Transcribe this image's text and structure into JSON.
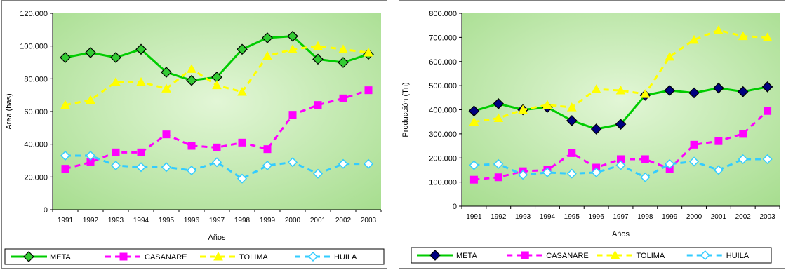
{
  "chart_data": [
    {
      "type": "line",
      "title": "",
      "xlabel": "Años",
      "ylabel": "Area (has)",
      "ylim": [
        0,
        120000
      ],
      "y_tick_labels": [
        "0",
        "20.000",
        "40.000",
        "60.000",
        "80.000",
        "100.000",
        "120.000"
      ],
      "categories": [
        "1991",
        "1992",
        "1993",
        "1994",
        "1995",
        "1996",
        "1997",
        "1998",
        "1999",
        "2000",
        "2001",
        "2002",
        "2003"
      ],
      "grid": false,
      "legend": "bottom",
      "plot_background": "green-gradient",
      "series": [
        {
          "name": "META",
          "color": "#00cc00",
          "marker": "diamond",
          "marker_fill": "#33cc33",
          "line_style": "solid",
          "values": [
            93000,
            96000,
            93000,
            98000,
            84000,
            79000,
            81000,
            98000,
            105000,
            106000,
            92000,
            90000,
            95000
          ]
        },
        {
          "name": "CASANARE",
          "color": "#ff00ff",
          "marker": "square",
          "marker_fill": "#ff00ff",
          "line_style": "dashed",
          "values": [
            25000,
            29000,
            35000,
            35000,
            46000,
            39000,
            38000,
            41000,
            37000,
            58000,
            64000,
            68000,
            73000
          ]
        },
        {
          "name": "TOLIMA",
          "color": "#ffff00",
          "marker": "triangle",
          "marker_fill": "#ffff00",
          "line_style": "dashed",
          "values": [
            64000,
            67000,
            78000,
            78000,
            74000,
            86000,
            76000,
            72000,
            94000,
            98000,
            100000,
            98000,
            96000
          ]
        },
        {
          "name": "HUILA",
          "color": "#33ccff",
          "marker": "diamond-open",
          "marker_fill": "#ffffff",
          "line_style": "dashed",
          "values": [
            33000,
            33000,
            27000,
            26000,
            26000,
            24000,
            29000,
            19000,
            27000,
            29000,
            22000,
            28000,
            28000
          ]
        }
      ]
    },
    {
      "type": "line",
      "title": "",
      "xlabel": "Años",
      "ylabel": "Producción (Tn)",
      "ylim": [
        0,
        800000
      ],
      "y_tick_labels": [
        "0",
        "100.000",
        "200.000",
        "300.000",
        "400.000",
        "500.000",
        "600.000",
        "700.000",
        "800.000"
      ],
      "categories": [
        "1991",
        "1992",
        "1993",
        "1994",
        "1995",
        "1996",
        "1997",
        "1998",
        "1999",
        "2000",
        "2001",
        "2002",
        "2003"
      ],
      "grid": false,
      "legend": "bottom",
      "plot_background": "green-gradient",
      "series": [
        {
          "name": "META",
          "color": "#00cc00",
          "marker": "diamond",
          "marker_fill": "#000080",
          "line_style": "solid",
          "values": [
            395000,
            425000,
            400000,
            410000,
            355000,
            320000,
            340000,
            460000,
            480000,
            470000,
            490000,
            475000,
            495000
          ]
        },
        {
          "name": "CASANARE",
          "color": "#ff00ff",
          "marker": "square",
          "marker_fill": "#ff00ff",
          "line_style": "dashed",
          "values": [
            110000,
            120000,
            145000,
            150000,
            220000,
            160000,
            195000,
            195000,
            155000,
            255000,
            270000,
            300000,
            395000
          ]
        },
        {
          "name": "TOLIMA",
          "color": "#ffff00",
          "marker": "triangle",
          "marker_fill": "#ffff00",
          "line_style": "dashed",
          "values": [
            350000,
            365000,
            400000,
            420000,
            410000,
            485000,
            480000,
            465000,
            620000,
            690000,
            730000,
            705000,
            700000
          ]
        },
        {
          "name": "HUILA",
          "color": "#33ccff",
          "marker": "diamond-open",
          "marker_fill": "#ffffff",
          "line_style": "dashed",
          "values": [
            170000,
            175000,
            130000,
            140000,
            135000,
            140000,
            170000,
            120000,
            175000,
            185000,
            150000,
            195000,
            195000
          ]
        }
      ]
    }
  ]
}
